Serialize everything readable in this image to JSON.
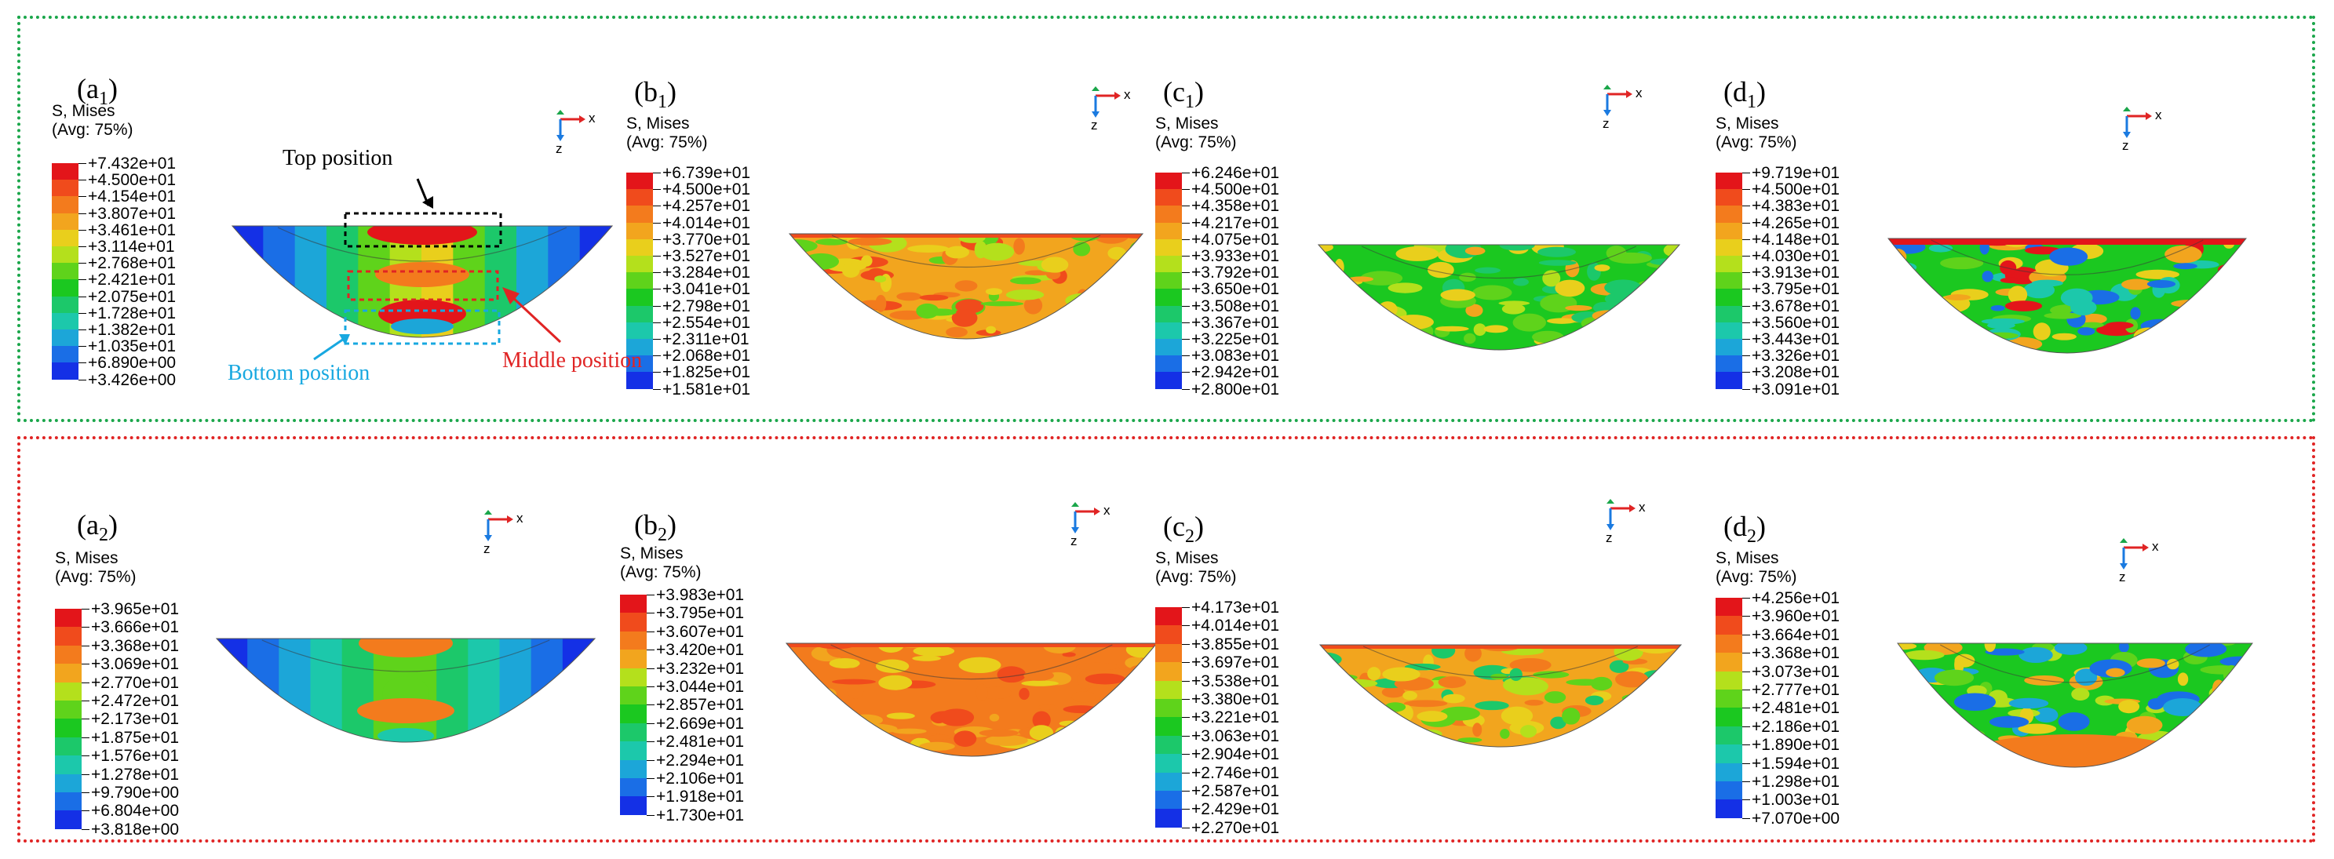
{
  "figure": {
    "header_line1": "S, Mises",
    "header_line2": "(Avg: 75%)",
    "axis_x": "x",
    "axis_z": "z"
  },
  "colors": [
    "#e3151a",
    "#f04b1c",
    "#f37b1d",
    "#f2a51e",
    "#e9cf1c",
    "#b4e01c",
    "#5fd31b",
    "#1bc820",
    "#1cc86a",
    "#1cc8ab",
    "#1ca6d8",
    "#1a6ee6",
    "#1430e6"
  ],
  "annotations": {
    "top": "Top position",
    "middle": "Middle position",
    "bottom": "Bottom position"
  },
  "panels": [
    {
      "id": "a1",
      "label_main": "(a",
      "label_sub": "1",
      "pattern": "banded",
      "values": [
        "+7.432e+01",
        "+4.500e+01",
        "+4.154e+01",
        "+3.807e+01",
        "+3.461e+01",
        "+3.114e+01",
        "+2.768e+01",
        "+2.421e+01",
        "+2.075e+01",
        "+1.728e+01",
        "+1.382e+01",
        "+1.035e+01",
        "+6.890e+00",
        "+3.426e+00"
      ]
    },
    {
      "id": "b1",
      "label_main": "(b",
      "label_sub": "1",
      "pattern": "orange",
      "values": [
        "+6.739e+01",
        "+4.500e+01",
        "+4.257e+01",
        "+4.014e+01",
        "+3.770e+01",
        "+3.527e+01",
        "+3.284e+01",
        "+3.041e+01",
        "+2.798e+01",
        "+2.554e+01",
        "+2.311e+01",
        "+2.068e+01",
        "+1.825e+01",
        "+1.581e+01"
      ]
    },
    {
      "id": "c1",
      "label_main": "(c",
      "label_sub": "1",
      "pattern": "green",
      "values": [
        "+6.246e+01",
        "+4.500e+01",
        "+4.358e+01",
        "+4.217e+01",
        "+4.075e+01",
        "+3.933e+01",
        "+3.792e+01",
        "+3.650e+01",
        "+3.508e+01",
        "+3.367e+01",
        "+3.225e+01",
        "+3.083e+01",
        "+2.942e+01",
        "+2.800e+01"
      ]
    },
    {
      "id": "d1",
      "label_main": "(d",
      "label_sub": "1",
      "pattern": "green-red",
      "values": [
        "+9.719e+01",
        "+4.500e+01",
        "+4.383e+01",
        "+4.265e+01",
        "+4.148e+01",
        "+4.030e+01",
        "+3.913e+01",
        "+3.795e+01",
        "+3.678e+01",
        "+3.560e+01",
        "+3.443e+01",
        "+3.326e+01",
        "+3.208e+01",
        "+3.091e+01"
      ]
    },
    {
      "id": "a2",
      "label_main": "(a",
      "label_sub": "2",
      "pattern": "banded-soft",
      "values": [
        "+3.965e+01",
        "+3.666e+01",
        "+3.368e+01",
        "+3.069e+01",
        "+2.770e+01",
        "+2.472e+01",
        "+2.173e+01",
        "+1.875e+01",
        "+1.576e+01",
        "+1.278e+01",
        "+9.790e+00",
        "+6.804e+00",
        "+3.818e+00"
      ]
    },
    {
      "id": "b2",
      "label_main": "(b",
      "label_sub": "2",
      "pattern": "orange-deep",
      "values": [
        "+3.983e+01",
        "+3.795e+01",
        "+3.607e+01",
        "+3.420e+01",
        "+3.232e+01",
        "+3.044e+01",
        "+2.857e+01",
        "+2.669e+01",
        "+2.481e+01",
        "+2.294e+01",
        "+2.106e+01",
        "+1.918e+01",
        "+1.730e+01"
      ]
    },
    {
      "id": "c2",
      "label_main": "(c",
      "label_sub": "2",
      "pattern": "mixed",
      "values": [
        "+4.173e+01",
        "+4.014e+01",
        "+3.855e+01",
        "+3.697e+01",
        "+3.538e+01",
        "+3.380e+01",
        "+3.221e+01",
        "+3.063e+01",
        "+2.904e+01",
        "+2.746e+01",
        "+2.587e+01",
        "+2.429e+01",
        "+2.270e+01"
      ]
    },
    {
      "id": "d2",
      "label_main": "(d",
      "label_sub": "2",
      "pattern": "green-orange",
      "values": [
        "+4.256e+01",
        "+3.960e+01",
        "+3.664e+01",
        "+3.368e+01",
        "+3.073e+01",
        "+2.777e+01",
        "+2.481e+01",
        "+2.186e+01",
        "+1.890e+01",
        "+1.594e+01",
        "+1.298e+01",
        "+1.003e+01",
        "+7.070e+00"
      ]
    }
  ]
}
